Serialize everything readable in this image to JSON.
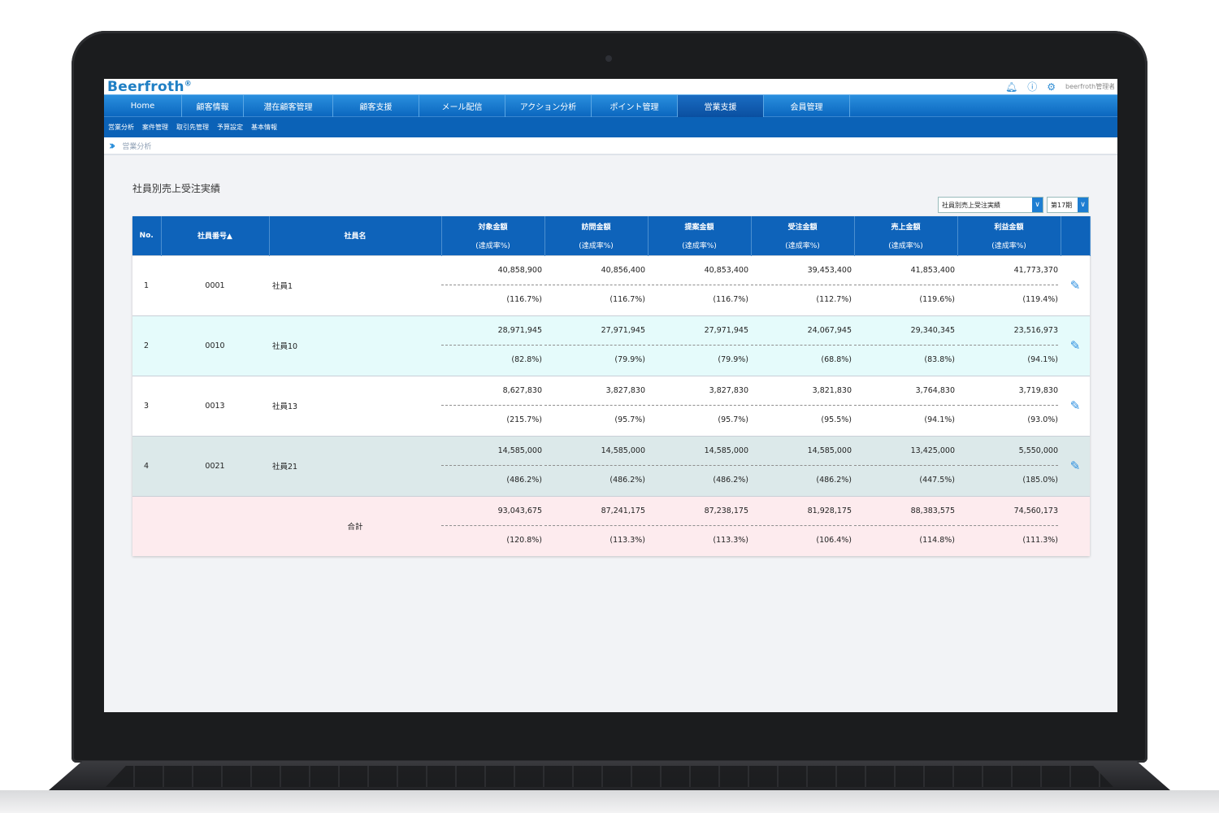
{
  "app": {
    "logo": "Beerfroth",
    "logo_mark": "®",
    "user": "beerfroth管理者"
  },
  "nav": {
    "items": [
      "Home",
      "顧客情報",
      "潜在顧客管理",
      "顧客支援",
      "メール配信",
      "アクション分析",
      "ポイント管理",
      "営業支援",
      "会員管理"
    ],
    "active": "営業支援"
  },
  "subnav": {
    "items": [
      "営業分析",
      "案件管理",
      "取引先管理",
      "予算設定",
      "基本情報"
    ]
  },
  "breadcrumb": {
    "current": "営業分析"
  },
  "page": {
    "title": "社員別売上受注実績",
    "report_select": "社員別売上受注実績",
    "period_select": "第17期"
  },
  "table": {
    "headers": {
      "no": "No.",
      "emp_no": "社員番号▲",
      "emp_name": "社員名",
      "cols": [
        "対象金額",
        "訪問金額",
        "提案金額",
        "受注金額",
        "売上金額",
        "利益金額"
      ],
      "sub": "(達成率%)"
    },
    "rows": [
      {
        "no": "1",
        "emp_no": "0001",
        "name": "社員1",
        "style": "w",
        "values": [
          "40,858,900",
          "40,856,400",
          "40,853,400",
          "39,453,400",
          "41,853,400",
          "41,773,370"
        ],
        "rates": [
          "(116.7%)",
          "(116.7%)",
          "(116.7%)",
          "(112.7%)",
          "(119.6%)",
          "(119.4%)"
        ]
      },
      {
        "no": "2",
        "emp_no": "0010",
        "name": "社員10",
        "style": "c",
        "values": [
          "28,971,945",
          "27,971,945",
          "27,971,945",
          "24,067,945",
          "29,340,345",
          "23,516,973"
        ],
        "rates": [
          "(82.8%)",
          "(79.9%)",
          "(79.9%)",
          "(68.8%)",
          "(83.8%)",
          "(94.1%)"
        ]
      },
      {
        "no": "3",
        "emp_no": "0013",
        "name": "社員13",
        "style": "w",
        "values": [
          "8,627,830",
          "3,827,830",
          "3,827,830",
          "3,821,830",
          "3,764,830",
          "3,719,830"
        ],
        "rates": [
          "(215.7%)",
          "(95.7%)",
          "(95.7%)",
          "(95.5%)",
          "(94.1%)",
          "(93.0%)"
        ]
      },
      {
        "no": "4",
        "emp_no": "0021",
        "name": "社員21",
        "style": "g",
        "values": [
          "14,585,000",
          "14,585,000",
          "14,585,000",
          "14,585,000",
          "13,425,000",
          "5,550,000"
        ],
        "rates": [
          "(486.2%)",
          "(486.2%)",
          "(486.2%)",
          "(486.2%)",
          "(447.5%)",
          "(185.0%)"
        ]
      }
    ],
    "total": {
      "label": "合計",
      "values": [
        "93,043,675",
        "87,241,175",
        "87,238,175",
        "81,928,175",
        "88,383,575",
        "74,560,173"
      ],
      "rates": [
        "(120.8%)",
        "(113.3%)",
        "(113.3%)",
        "(106.4%)",
        "(114.8%)",
        "(111.3%)"
      ]
    }
  }
}
